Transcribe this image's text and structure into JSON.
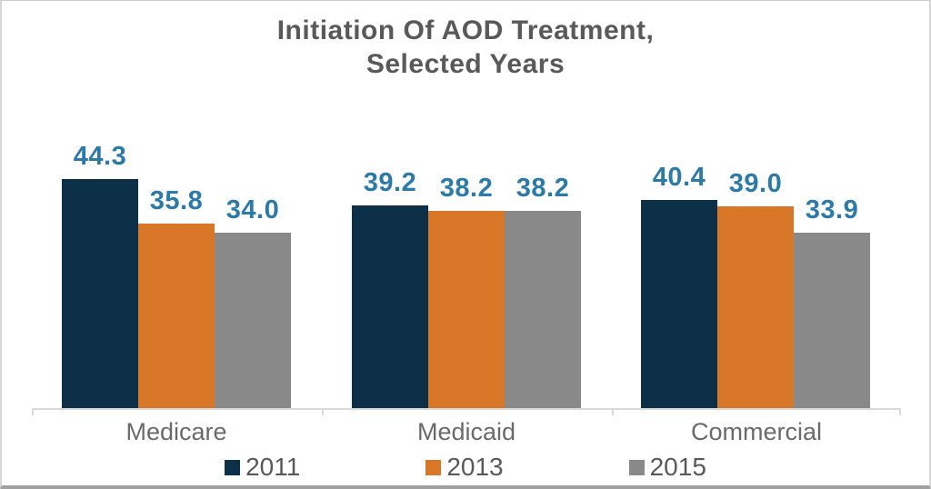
{
  "chart_data": {
    "type": "bar",
    "title": "Initiation Of AOD Treatment, Selected Years",
    "title_lines": [
      "Initiation Of AOD Treatment,",
      "Selected Years"
    ],
    "xlabel": "",
    "ylabel": "",
    "categories": [
      "Medicare",
      "Medicaid",
      "Commercial"
    ],
    "series": [
      {
        "name": "2011",
        "color": "#0d3049",
        "values": [
          44.3,
          39.2,
          40.4
        ],
        "value_labels": [
          "44.3",
          "39.2",
          "40.4"
        ]
      },
      {
        "name": "2013",
        "color": "#d87728",
        "values": [
          35.8,
          38.2,
          39.0
        ],
        "value_labels": [
          "35.8",
          "38.2",
          "39.0"
        ]
      },
      {
        "name": "2015",
        "color": "#898989",
        "values": [
          34.0,
          38.2,
          33.9
        ],
        "value_labels": [
          "34.0",
          "38.2",
          "33.9"
        ]
      }
    ],
    "ylim": [
      0,
      50
    ],
    "grid": false,
    "y_axis_shown": false,
    "value_labels_shown": true,
    "legend_position": "bottom",
    "colors": {
      "value_label": "#2b7aa9",
      "title_text": "#595959",
      "category_text": "#6a6a6a",
      "legend_text": "#595959",
      "axis_line": "#d9d9d9"
    }
  }
}
